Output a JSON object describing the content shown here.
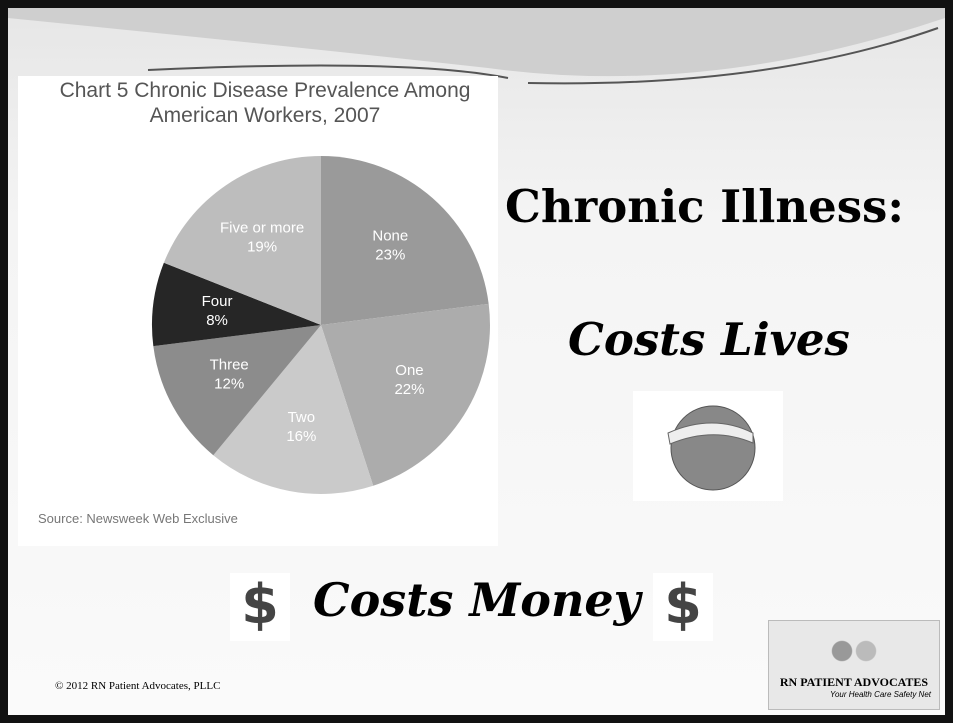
{
  "chart_data": {
    "type": "pie",
    "title": "Chart 5 Chronic Disease Prevalence Among American Workers, 2007",
    "categories": [
      "None",
      "One",
      "Two",
      "Three",
      "Four",
      "Five or more"
    ],
    "values": [
      23,
      22,
      16,
      12,
      8,
      19
    ],
    "value_labels": [
      "23%",
      "22%",
      "16%",
      "12%",
      "8%",
      "19%"
    ],
    "colors": [
      "#9a9a9a",
      "#acacac",
      "#cacaca",
      "#8c8c8c",
      "#262626",
      "#bdbdbd"
    ],
    "source": "Source: Newsweek Web Exclusive"
  },
  "slide": {
    "heading": "Chronic Illness:",
    "subheading": "Costs Lives",
    "money": "Costs Money",
    "dollar_sign": "$",
    "footer": "© 2012 RN Patient Advocates, PLLC",
    "logo": {
      "name": "RN PATIENT ADVOCATES",
      "tagline": "Your Health Care Safety Net"
    }
  }
}
